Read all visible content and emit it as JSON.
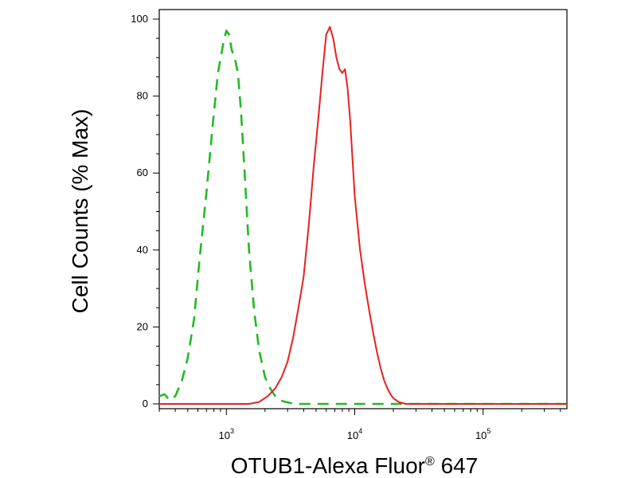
{
  "chart_data": {
    "type": "line",
    "title": "",
    "xlabel": "OTUB1-Alexa Fluor",
    "xlabel_mark": "®",
    "xlabel_suffix": " 647",
    "ylabel": "Cell Counts (% Max)",
    "x_scale": "log",
    "xlim": [
      300,
      450000
    ],
    "ylim": [
      0,
      100
    ],
    "x_ticks": [
      {
        "value": 1000,
        "base": "10",
        "exp": "3"
      },
      {
        "value": 10000,
        "base": "10",
        "exp": "4"
      },
      {
        "value": 100000,
        "base": "10",
        "exp": "5"
      }
    ],
    "y_ticks": [
      {
        "value": 0,
        "label": "0"
      },
      {
        "value": 20,
        "label": "20"
      },
      {
        "value": 40,
        "label": "40"
      },
      {
        "value": 60,
        "label": "60"
      },
      {
        "value": 80,
        "label": "80"
      },
      {
        "value": 100,
        "label": "100"
      }
    ],
    "grid": false,
    "series": [
      {
        "color": "#22bb22",
        "style": "dashed",
        "x": [
          300,
          330,
          360,
          400,
          450,
          500,
          560,
          620,
          700,
          780,
          860,
          950,
          1000,
          1050,
          1100,
          1160,
          1230,
          1300,
          1400,
          1500,
          1650,
          1800,
          2000,
          2200,
          2400,
          2600,
          2900,
          3200,
          3600,
          4000,
          5000,
          7000,
          10000,
          20000,
          100000,
          450000
        ],
        "y": [
          2,
          2.5,
          1,
          2,
          6,
          12,
          22,
          38,
          55,
          72,
          86,
          94,
          97,
          96,
          92,
          90,
          86,
          76,
          58,
          40,
          24,
          14,
          7,
          4,
          2,
          1,
          0.5,
          0.2,
          0,
          0,
          0,
          0,
          0,
          0,
          0,
          0
        ]
      },
      {
        "color": "#e82020",
        "style": "solid",
        "x": [
          300,
          1000,
          1500,
          1800,
          2100,
          2400,
          2700,
          3000,
          3300,
          3600,
          4000,
          4400,
          4800,
          5200,
          5600,
          6000,
          6400,
          6800,
          7200,
          7600,
          8000,
          8400,
          8800,
          9200,
          9600,
          10000,
          11000,
          12000,
          13000,
          14000,
          15000,
          16000,
          17000,
          18000,
          19000,
          20000,
          22000,
          25000,
          30000,
          100000,
          450000
        ],
        "y": [
          0,
          0,
          0,
          0.5,
          2,
          4,
          7,
          11,
          17,
          24,
          33,
          47,
          62,
          74,
          86,
          96,
          98,
          95,
          90,
          87,
          86,
          87,
          82,
          74,
          64,
          54,
          40,
          31,
          24,
          18,
          13,
          9,
          6,
          4,
          2.5,
          1.5,
          0.5,
          0,
          0,
          0,
          0
        ]
      }
    ]
  }
}
